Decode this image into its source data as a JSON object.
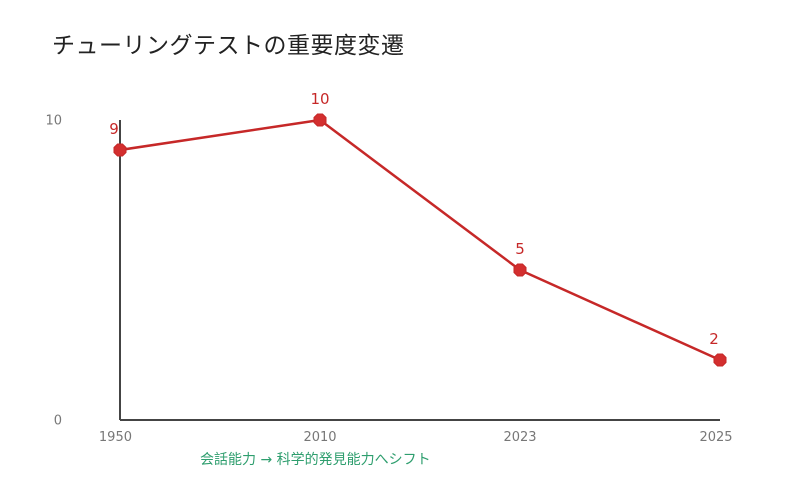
{
  "chart_data": {
    "type": "line",
    "title": "チューリングテストの重要度変遷",
    "xlabel": "",
    "ylabel": "",
    "categories": [
      "1950",
      "2010",
      "2023",
      "2025"
    ],
    "series": [
      {
        "values": [
          9,
          10,
          5,
          2
        ]
      }
    ],
    "ylim": [
      0,
      10
    ],
    "y_ticks": [
      "0",
      "10"
    ],
    "data_labels": [
      "9",
      "10",
      "5",
      "2"
    ],
    "annotation": "会話能力 → 科学的発見能力へシフト",
    "grid": false,
    "legend": "none"
  },
  "colors": {
    "series": "#c62828",
    "marker": "#d32f2f",
    "axis": "#444444",
    "tick_text": "#777777",
    "annotation": "#2e9e6e",
    "title": "#222222"
  }
}
